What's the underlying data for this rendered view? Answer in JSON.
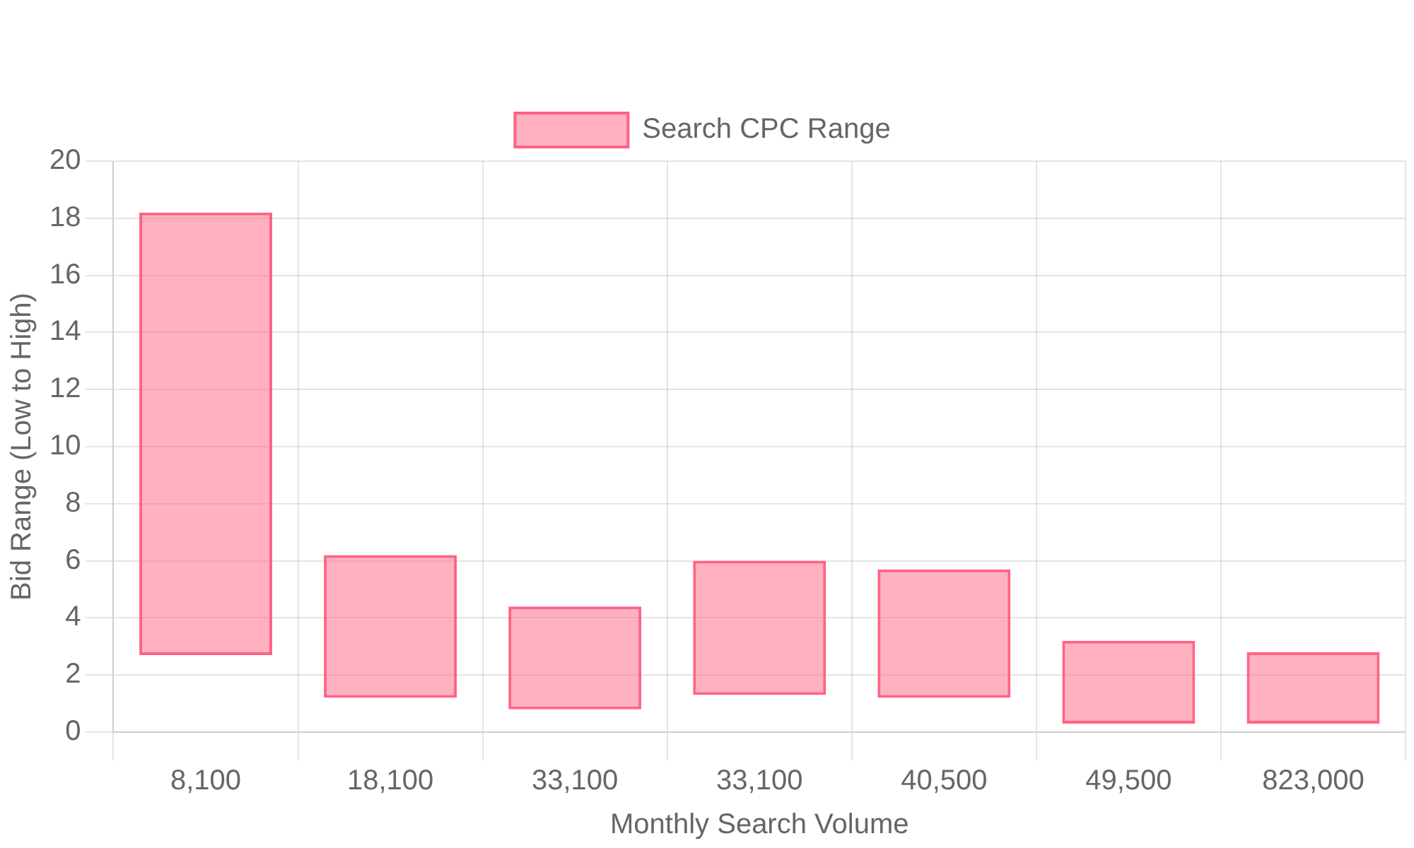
{
  "chart_data": {
    "type": "bar",
    "xlabel": "Monthly Search Volume",
    "ylabel": "Bid Range (Low to High)",
    "categories": [
      "8,100",
      "18,100",
      "33,100",
      "33,100",
      "40,500",
      "49,500",
      "823,000"
    ],
    "series": [
      {
        "name": "Search CPC Range",
        "color": "#ff6384",
        "base": [
          2.7,
          1.2,
          0.8,
          1.3,
          1.2,
          0.3,
          0.3
        ],
        "values": [
          15.5,
          5.0,
          3.6,
          4.7,
          4.5,
          2.9,
          2.5
        ]
      }
    ],
    "ylim": [
      0,
      20
    ],
    "yticks": [
      0,
      2,
      4,
      6,
      8,
      10,
      12,
      14,
      16,
      18,
      20
    ],
    "grid": true,
    "legend": "top"
  }
}
